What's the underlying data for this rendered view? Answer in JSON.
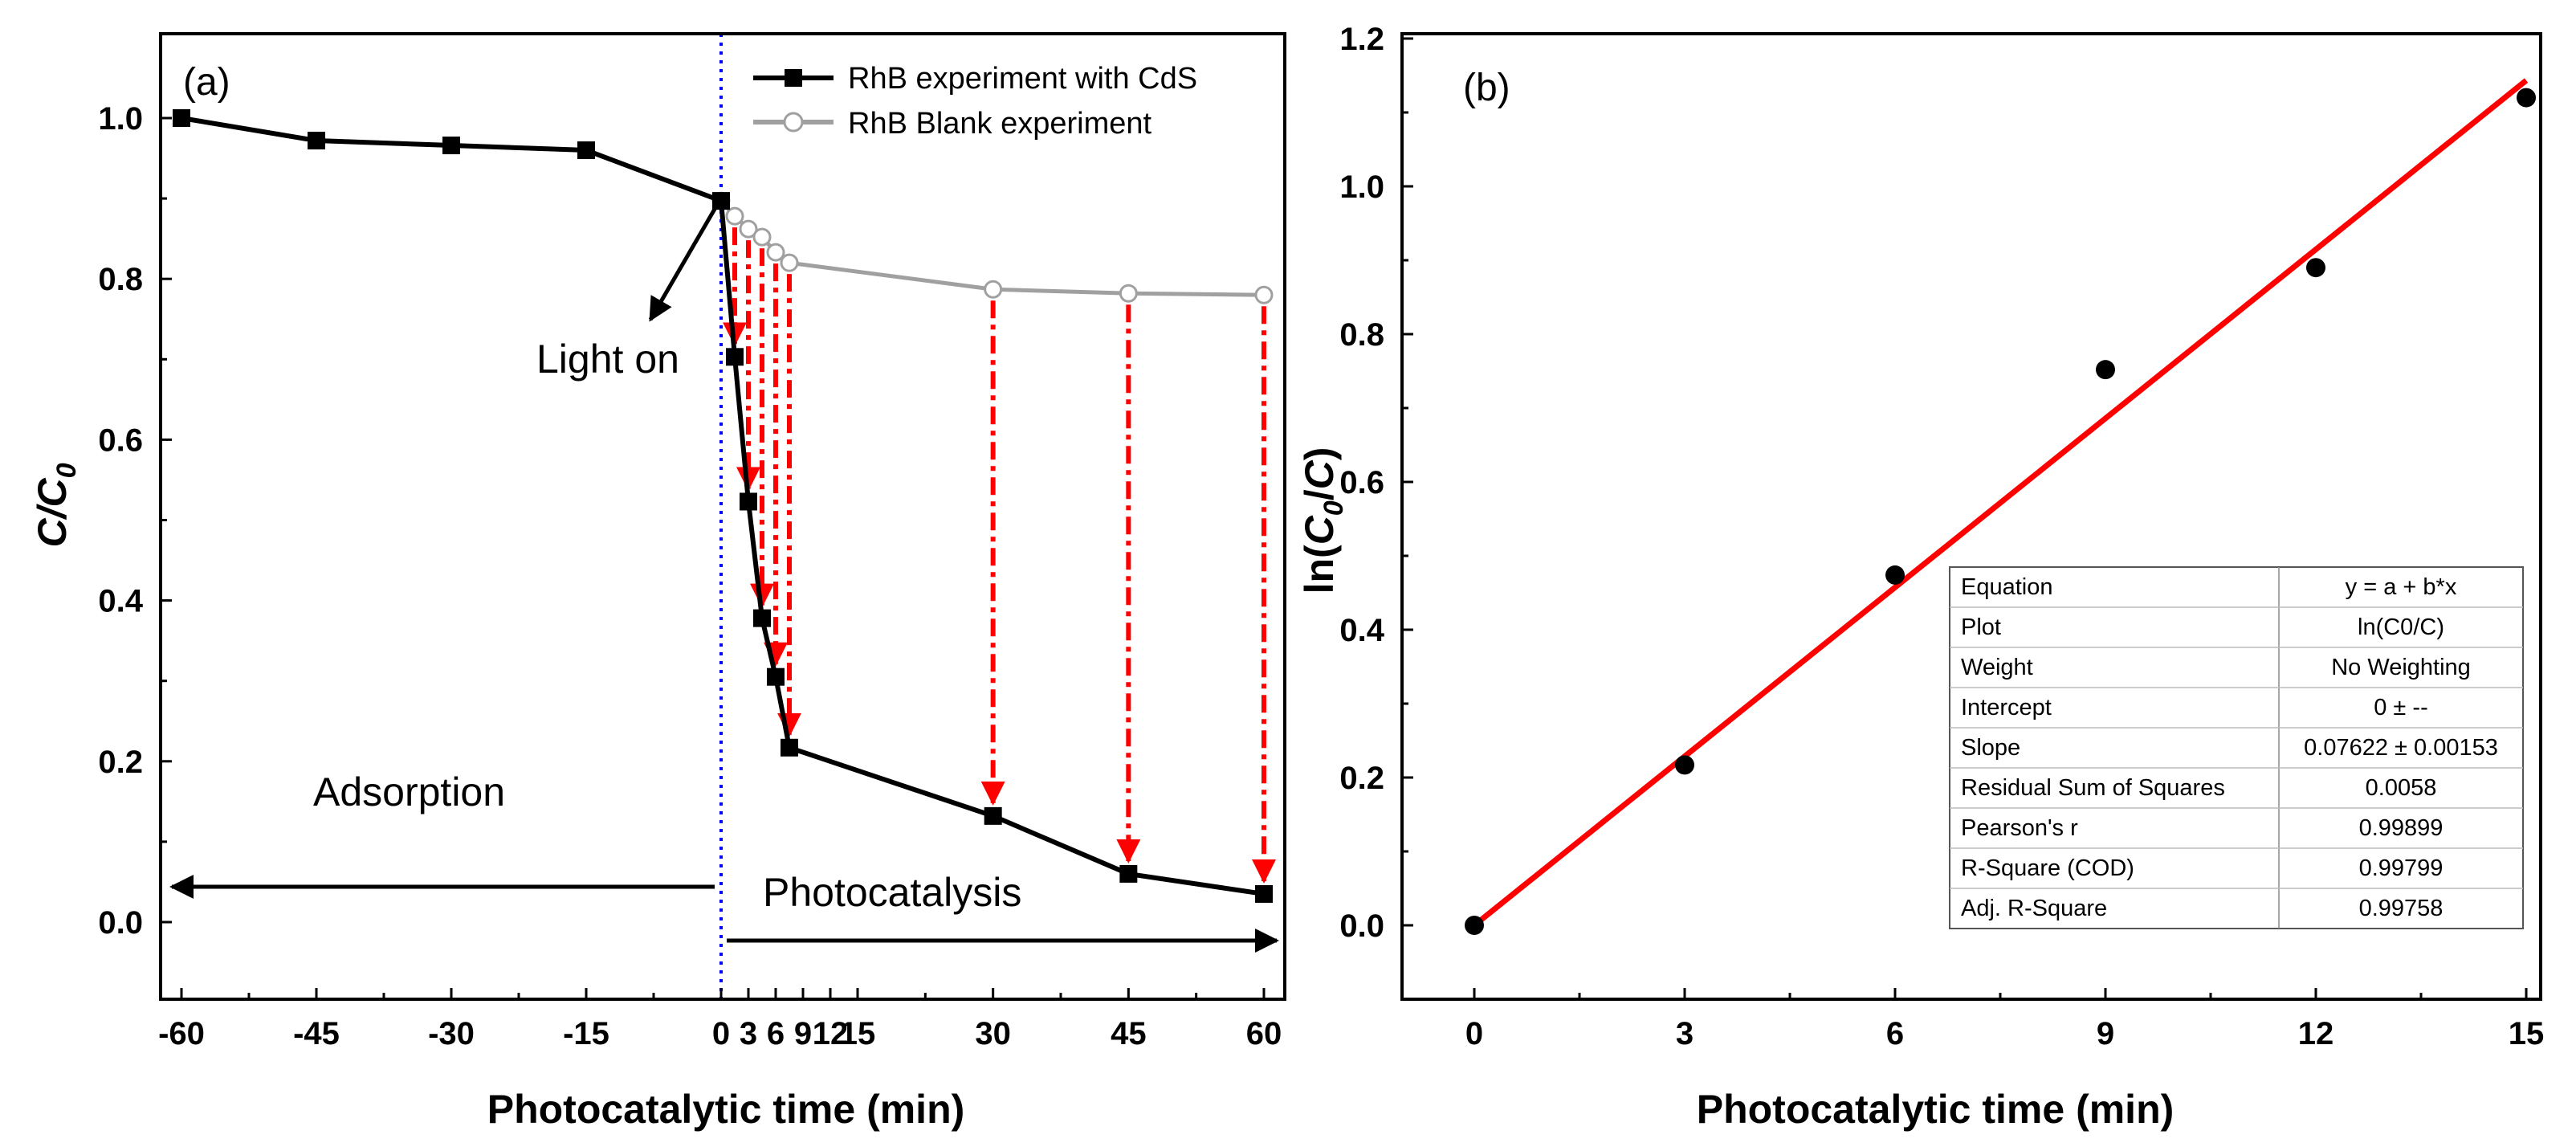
{
  "chart_data": [
    {
      "type": "line",
      "panel_label": "(a)",
      "xlabel": "Photocatalytic time (min)",
      "ylabel_main": "C/C",
      "ylabel_sub": "0",
      "xlim": [
        -63,
        63
      ],
      "ylim": [
        -0.1,
        1.1
      ],
      "xticks": [
        -60,
        -45,
        -30,
        -15,
        0,
        3,
        6,
        9,
        12,
        15,
        30,
        45,
        60
      ],
      "yticks": [
        0.0,
        0.2,
        0.4,
        0.6,
        0.8,
        1.0
      ],
      "ytick_labels": [
        "0.0",
        "0.2",
        "0.4",
        "0.6",
        "0.8",
        "1.0"
      ],
      "series": [
        {
          "name": "RhB experiment with CdS",
          "color": "#000000",
          "marker": "square",
          "x": [
            -60,
            -45,
            -30,
            -15,
            0,
            1.5,
            3,
            4.5,
            6,
            7.5,
            30,
            45,
            60
          ],
          "y": [
            1.0,
            0.972,
            0.966,
            0.96,
            0.897,
            0.703,
            0.523,
            0.378,
            0.305,
            0.217,
            0.132,
            0.06,
            0.035
          ]
        },
        {
          "name": "RhB Blank experiment",
          "color": "#a0a0a0",
          "marker": "open-circle",
          "x": [
            0,
            1.5,
            3,
            4.5,
            6,
            7.5,
            30,
            45,
            60
          ],
          "y": [
            0.897,
            0.878,
            0.862,
            0.852,
            0.833,
            0.82,
            0.787,
            0.782,
            0.78
          ]
        }
      ],
      "annotations": {
        "light_on": "Light on",
        "adsorption": "Adsorption",
        "photocatalysis": "Photocatalysis"
      },
      "divider_x": 0,
      "divider_color": "#0000ff",
      "arrow_color": "#ff0000"
    },
    {
      "type": "scatter",
      "panel_label": "(b)",
      "xlabel": "Photocatalytic time (min)",
      "ylabel_pre": "ln(",
      "ylabel_c0": "C",
      "ylabel_sub": "0",
      "ylabel_mid": "/",
      "ylabel_c": "C",
      "ylabel_post": ")",
      "xlim": [
        -1.0,
        16.0
      ],
      "ylim": [
        -0.1,
        1.2
      ],
      "xticks": [
        0,
        3,
        6,
        9,
        12,
        15
      ],
      "yticks": [
        0.0,
        0.2,
        0.4,
        0.6,
        0.8,
        1.0,
        1.2
      ],
      "ytick_labels": [
        "0.0",
        "0.2",
        "0.4",
        "0.6",
        "0.8",
        "1.0",
        "1.2"
      ],
      "points": {
        "x": [
          0,
          3,
          6,
          9,
          12,
          15
        ],
        "y": [
          0.0,
          0.217,
          0.474,
          0.752,
          0.89,
          1.12
        ]
      },
      "fit": {
        "intercept": 0,
        "slope": 0.07622,
        "x_range": [
          0,
          15
        ],
        "color": "#ff0000"
      },
      "stats_table": [
        [
          "Equation",
          "y = a + b*x"
        ],
        [
          "Plot",
          "ln(C0/C)"
        ],
        [
          "Weight",
          "No Weighting"
        ],
        [
          "Intercept",
          "0 ± --"
        ],
        [
          "Slope",
          "0.07622 ± 0.00153"
        ],
        [
          "Residual Sum of Squares",
          "0.0058"
        ],
        [
          "Pearson's r",
          "0.99899"
        ],
        [
          "R-Square (COD)",
          "0.99799"
        ],
        [
          "Adj. R-Square",
          "0.99758"
        ]
      ]
    }
  ]
}
